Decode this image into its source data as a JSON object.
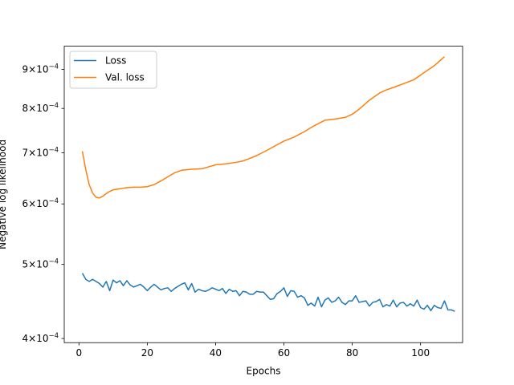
{
  "chart_data": {
    "type": "line",
    "title": "",
    "xlabel": "Epochs",
    "ylabel": "Negative log likelihood",
    "y_scale": "log",
    "xlim": [
      -4.3,
      112.3
    ],
    "ylim": [
      0.000395,
      0.000965
    ],
    "x_ticks": [
      0,
      20,
      40,
      60,
      80,
      100
    ],
    "x_tick_labels": [
      "0",
      "20",
      "40",
      "60",
      "80",
      "100"
    ],
    "y_ticks": [
      0.0004,
      0.0005,
      0.0006,
      0.0007,
      0.0008,
      0.0009
    ],
    "y_tick_labels": [
      {
        "mant": "4",
        "base": "×10",
        "exp": "−4"
      },
      {
        "mant": "5",
        "base": "×10",
        "exp": "−4"
      },
      {
        "mant": "6",
        "base": "×10",
        "exp": "−4"
      },
      {
        "mant": "7",
        "base": "×10",
        "exp": "−4"
      },
      {
        "mant": "8",
        "base": "×10",
        "exp": "−4"
      },
      {
        "mant": "9",
        "base": "×10",
        "exp": "−4"
      }
    ],
    "grid": false,
    "legend_position": "top-left",
    "series": [
      {
        "name": "Loss",
        "color": "#1f77b4",
        "x_start": 1,
        "values": [
          0.000487,
          0.000478,
          0.000475,
          0.000478,
          0.000475,
          0.000472,
          0.000467,
          0.000475,
          0.000462,
          0.000477,
          0.000473,
          0.000476,
          0.000469,
          0.000476,
          0.00047,
          0.000467,
          0.000469,
          0.000471,
          0.000467,
          0.000462,
          0.000467,
          0.000471,
          0.000467,
          0.000463,
          0.000465,
          0.000466,
          0.000461,
          0.000465,
          0.000468,
          0.000471,
          0.000473,
          0.000463,
          0.000472,
          0.00046,
          0.000464,
          0.000462,
          0.000461,
          0.000463,
          0.000466,
          0.000464,
          0.000462,
          0.000465,
          0.000458,
          0.000464,
          0.000461,
          0.000462,
          0.000455,
          0.000461,
          0.00046,
          0.000457,
          0.000457,
          0.000461,
          0.00046,
          0.00046,
          0.000455,
          0.00045,
          0.000451,
          0.000458,
          0.000461,
          0.000466,
          0.000454,
          0.000462,
          0.000461,
          0.000453,
          0.000455,
          0.000452,
          0.000442,
          0.000445,
          0.000441,
          0.000453,
          0.00044,
          0.000449,
          0.000452,
          0.000446,
          0.000448,
          0.000453,
          0.000446,
          0.000443,
          0.000448,
          0.000448,
          0.000455,
          0.000446,
          0.000447,
          0.000448,
          0.000441,
          0.000446,
          0.000447,
          0.00045,
          0.00044,
          0.000443,
          0.000441,
          0.000449,
          0.00044,
          0.000445,
          0.000446,
          0.000441,
          0.000444,
          0.000441,
          0.000449,
          0.000439,
          0.000437,
          0.000442,
          0.000435,
          0.000442,
          0.000439,
          0.000438,
          0.000448,
          0.000436,
          0.000436,
          0.000434
        ]
      },
      {
        "name": "Val. loss",
        "color": "#ff7f0e",
        "x": [
          1,
          2,
          3,
          4,
          5,
          6,
          7,
          8,
          9,
          10,
          12,
          14,
          16,
          18,
          20,
          22,
          24,
          26,
          28,
          30,
          33,
          36,
          38,
          40,
          43,
          46,
          48,
          50,
          52,
          55,
          58,
          60,
          63,
          66,
          69,
          72,
          75,
          78,
          80,
          82,
          85,
          88,
          90,
          92,
          95,
          98,
          101,
          104,
          107
        ],
        "values": [
          0.000703,
          0.000665,
          0.000636,
          0.00062,
          0.000612,
          0.000611,
          0.000614,
          0.000619,
          0.000623,
          0.000626,
          0.000628,
          0.00063,
          0.000631,
          0.000631,
          0.000632,
          0.000636,
          0.000643,
          0.000651,
          0.000659,
          0.000664,
          0.000666,
          0.000667,
          0.000671,
          0.000675,
          0.000677,
          0.00068,
          0.000683,
          0.000688,
          0.000694,
          0.000705,
          0.000717,
          0.000725,
          0.000734,
          0.000746,
          0.00076,
          0.000772,
          0.000775,
          0.000779,
          0.000786,
          0.000798,
          0.00082,
          0.000838,
          0.000846,
          0.000852,
          0.000862,
          0.000872,
          0.000891,
          0.00091,
          0.000935
        ]
      }
    ]
  }
}
